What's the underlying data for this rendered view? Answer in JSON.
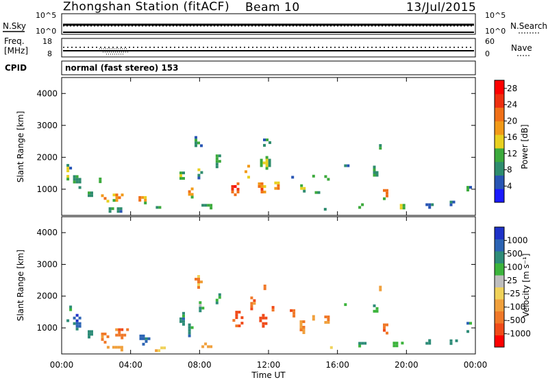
{
  "header": {
    "station": "Zhongshan Station (fitACF)",
    "beam": "Beam 10",
    "date": "13/Jul/2015"
  },
  "nsky_panel": {
    "left_label": "N.Sky",
    "right_label": "N.Search",
    "left_ticks": [
      "10^5",
      "10^0"
    ],
    "right_ticks": [
      "10^5",
      "10^0"
    ]
  },
  "freq_panel": {
    "left_label_line1": "Freq.",
    "left_label_line2": "[MHz]",
    "right_label": "Nave",
    "left_ticks": [
      "18",
      "8"
    ],
    "right_ticks": [
      "60",
      "0"
    ]
  },
  "cpid": {
    "label": "CPID",
    "mode": "normal (fast stereo) 153"
  },
  "chart_data": [
    {
      "type": "heatmap",
      "title": "",
      "xlabel": "Time UT",
      "ylabel": "Slant Range [km]",
      "xlim": [
        0,
        24
      ],
      "ylim": [
        180,
        4500
      ],
      "x_ticks": [
        "00:00",
        "04:00",
        "08:00",
        "12:00",
        "16:00",
        "20:00",
        "00:00"
      ],
      "y_ticks": [
        "1000",
        "2000",
        "3000",
        "4000"
      ],
      "colorbar": {
        "label": "Power [dB]",
        "ticks": [
          "4",
          "8",
          "12",
          "16",
          "20",
          "24",
          "28"
        ],
        "range": [
          0,
          30
        ],
        "colors": [
          "#1a1aff",
          "#2855b4",
          "#2e8c6e",
          "#3caa3c",
          "#e8d020",
          "#f29a18",
          "#f07018",
          "#ee3010",
          "#ff0000"
        ]
      },
      "blobs": [
        {
          "t": 0.3,
          "r": 1550,
          "w": 0.35,
          "h": 650,
          "v": 13
        },
        {
          "t": 0.8,
          "r": 1250,
          "w": 0.6,
          "h": 550,
          "v": 11
        },
        {
          "t": 1.6,
          "r": 900,
          "w": 0.5,
          "h": 400,
          "v": 10
        },
        {
          "t": 2.4,
          "r": 750,
          "w": 0.55,
          "h": 350,
          "v": 24
        },
        {
          "t": 2.2,
          "r": 1300,
          "w": 0.4,
          "h": 300,
          "v": 12
        },
        {
          "t": 3.2,
          "r": 800,
          "w": 0.8,
          "h": 300,
          "v": 22
        },
        {
          "t": 4.6,
          "r": 720,
          "w": 0.6,
          "h": 300,
          "v": 22
        },
        {
          "t": 3.0,
          "r": 420,
          "w": 1.5,
          "h": 200,
          "v": 8
        },
        {
          "t": 5.7,
          "r": 520,
          "w": 0.8,
          "h": 250,
          "v": 13
        },
        {
          "t": 6.9,
          "r": 1450,
          "w": 0.45,
          "h": 550,
          "v": 12
        },
        {
          "t": 7.4,
          "r": 1000,
          "w": 0.45,
          "h": 450,
          "v": 23
        },
        {
          "t": 7.9,
          "r": 1600,
          "w": 0.35,
          "h": 450,
          "v": 12
        },
        {
          "t": 8.4,
          "r": 500,
          "w": 0.9,
          "h": 250,
          "v": 13
        },
        {
          "t": 7.8,
          "r": 2500,
          "w": 0.5,
          "h": 500,
          "v": 10
        },
        {
          "t": 9.0,
          "r": 1950,
          "w": 0.45,
          "h": 450,
          "v": 12
        },
        {
          "t": 10.0,
          "r": 1050,
          "w": 0.65,
          "h": 500,
          "v": 27
        },
        {
          "t": 10.7,
          "r": 1600,
          "w": 0.5,
          "h": 500,
          "v": 20
        },
        {
          "t": 11.5,
          "r": 1050,
          "w": 0.55,
          "h": 500,
          "v": 24
        },
        {
          "t": 11.7,
          "r": 1850,
          "w": 0.7,
          "h": 550,
          "v": 14
        },
        {
          "t": 12.4,
          "r": 1100,
          "w": 0.45,
          "h": 450,
          "v": 21
        },
        {
          "t": 11.8,
          "r": 2500,
          "w": 0.55,
          "h": 350,
          "v": 11
        },
        {
          "t": 13.2,
          "r": 1500,
          "w": 0.4,
          "h": 350,
          "v": 12
        },
        {
          "t": 13.9,
          "r": 1100,
          "w": 0.45,
          "h": 450,
          "v": 14
        },
        {
          "t": 14.6,
          "r": 1450,
          "w": 0.45,
          "h": 350,
          "v": 14
        },
        {
          "t": 14.7,
          "r": 900,
          "w": 0.35,
          "h": 250,
          "v": 15
        },
        {
          "t": 15.3,
          "r": 1350,
          "w": 0.45,
          "h": 350,
          "v": 10
        },
        {
          "t": 15.3,
          "r": 450,
          "w": 0.5,
          "h": 100,
          "v": 14
        },
        {
          "t": 16.4,
          "r": 1800,
          "w": 0.35,
          "h": 300,
          "v": 9
        },
        {
          "t": 17.3,
          "r": 520,
          "w": 0.5,
          "h": 250,
          "v": 9
        },
        {
          "t": 18.1,
          "r": 1600,
          "w": 0.4,
          "h": 450,
          "v": 10
        },
        {
          "t": 18.4,
          "r": 2300,
          "w": 0.3,
          "h": 400,
          "v": 12
        },
        {
          "t": 18.7,
          "r": 950,
          "w": 0.45,
          "h": 450,
          "v": 26
        },
        {
          "t": 19.6,
          "r": 500,
          "w": 0.6,
          "h": 250,
          "v": 14
        },
        {
          "t": 21.2,
          "r": 580,
          "w": 0.5,
          "h": 300,
          "v": 8
        },
        {
          "t": 22.6,
          "r": 600,
          "w": 0.5,
          "h": 250,
          "v": 8
        },
        {
          "t": 23.5,
          "r": 1100,
          "w": 0.35,
          "h": 350,
          "v": 11
        }
      ]
    },
    {
      "type": "heatmap",
      "title": "",
      "xlabel": "Time UT",
      "ylabel": "Slant Range [km]",
      "xlim": [
        0,
        24
      ],
      "ylim": [
        180,
        4500
      ],
      "x_ticks": [
        "00:00",
        "04:00",
        "08:00",
        "12:00",
        "16:00",
        "20:00",
        "00:00"
      ],
      "y_ticks": [
        "1000",
        "2000",
        "3000",
        "4000"
      ],
      "colorbar": {
        "label": "Velocity [m s⁻¹]",
        "ticks": [
          "1000",
          "500",
          "100",
          "25",
          "-25",
          "-100",
          "-500",
          "-1000"
        ],
        "colors": [
          "#1e32c8",
          "#2c64b4",
          "#2e8c78",
          "#3cb43c",
          "#bebebe",
          "#f0d25a",
          "#f0a03c",
          "#f07828",
          "#f04a18",
          "#ff0000"
        ]
      },
      "blobs": [
        {
          "t": 0.3,
          "r": 1550,
          "w": 0.35,
          "h": 650,
          "c": 2
        },
        {
          "t": 0.8,
          "r": 1250,
          "w": 0.6,
          "h": 550,
          "c": 1
        },
        {
          "t": 1.6,
          "r": 900,
          "w": 0.5,
          "h": 400,
          "c": 2
        },
        {
          "t": 2.4,
          "r": 800,
          "w": 0.55,
          "h": 450,
          "c": 7
        },
        {
          "t": 3.4,
          "r": 900,
          "w": 0.9,
          "h": 350,
          "c": 7
        },
        {
          "t": 4.7,
          "r": 700,
          "w": 0.7,
          "h": 350,
          "c": 1
        },
        {
          "t": 3.1,
          "r": 420,
          "w": 1.6,
          "h": 200,
          "c": 6
        },
        {
          "t": 5.7,
          "r": 400,
          "w": 0.9,
          "h": 200,
          "c": 5
        },
        {
          "t": 6.9,
          "r": 1400,
          "w": 0.45,
          "h": 550,
          "c": 2
        },
        {
          "t": 7.4,
          "r": 1000,
          "w": 0.45,
          "h": 450,
          "c": 2
        },
        {
          "t": 8.0,
          "r": 1700,
          "w": 0.4,
          "h": 450,
          "c": 3
        },
        {
          "t": 8.4,
          "r": 500,
          "w": 0.9,
          "h": 250,
          "c": 6
        },
        {
          "t": 7.8,
          "r": 2500,
          "w": 0.5,
          "h": 500,
          "c": 6
        },
        {
          "t": 9.0,
          "r": 1950,
          "w": 0.45,
          "h": 450,
          "c": 2
        },
        {
          "t": 10.1,
          "r": 1300,
          "w": 0.7,
          "h": 650,
          "c": 8
        },
        {
          "t": 10.9,
          "r": 1800,
          "w": 0.55,
          "h": 550,
          "c": 7
        },
        {
          "t": 11.6,
          "r": 1250,
          "w": 0.6,
          "h": 550,
          "c": 8
        },
        {
          "t": 12.3,
          "r": 1700,
          "w": 0.55,
          "h": 500,
          "c": 7
        },
        {
          "t": 11.8,
          "r": 2300,
          "w": 0.5,
          "h": 300,
          "c": 7
        },
        {
          "t": 13.3,
          "r": 1500,
          "w": 0.45,
          "h": 350,
          "c": 7
        },
        {
          "t": 13.9,
          "r": 1100,
          "w": 0.5,
          "h": 450,
          "c": 6
        },
        {
          "t": 14.6,
          "r": 1400,
          "w": 0.45,
          "h": 350,
          "c": 6
        },
        {
          "t": 15.3,
          "r": 1300,
          "w": 0.45,
          "h": 350,
          "c": 6
        },
        {
          "t": 15.6,
          "r": 450,
          "w": 0.7,
          "h": 120,
          "c": 5
        },
        {
          "t": 16.4,
          "r": 1800,
          "w": 0.35,
          "h": 300,
          "c": 2
        },
        {
          "t": 17.3,
          "r": 520,
          "w": 0.5,
          "h": 250,
          "c": 2
        },
        {
          "t": 18.1,
          "r": 1600,
          "w": 0.4,
          "h": 450,
          "c": 3
        },
        {
          "t": 18.4,
          "r": 2300,
          "w": 0.3,
          "h": 400,
          "c": 6
        },
        {
          "t": 18.7,
          "r": 1000,
          "w": 0.45,
          "h": 450,
          "c": 7
        },
        {
          "t": 19.4,
          "r": 500,
          "w": 0.7,
          "h": 300,
          "c": 3
        },
        {
          "t": 21.2,
          "r": 580,
          "w": 0.5,
          "h": 300,
          "c": 2
        },
        {
          "t": 22.6,
          "r": 600,
          "w": 0.5,
          "h": 250,
          "c": 2
        },
        {
          "t": 23.5,
          "r": 1100,
          "w": 0.35,
          "h": 350,
          "c": 2
        }
      ]
    }
  ]
}
